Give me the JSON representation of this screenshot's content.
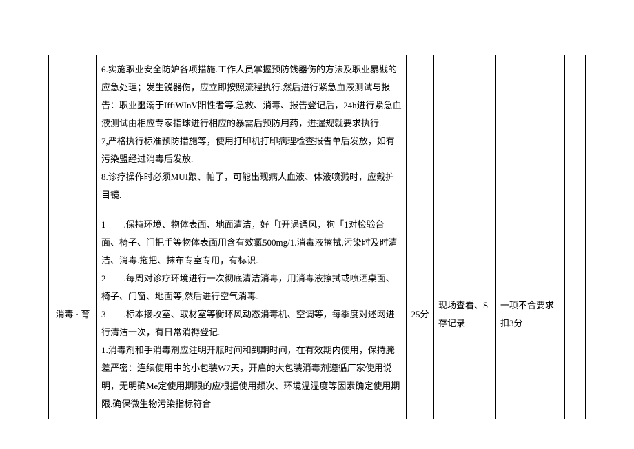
{
  "row1": {
    "content": "6.实施职业安全防妒各项措施.工作人员掌握预防饯器伤的方法及职业暴戡的应急处理；发生锐器伤，应立即按照流程执行.然后进行紧急血液测试与报告：职业噩溺于IffiWInV阳性者等.急救、消毒、报告登记后，24h进行紧急血液测试由相应专家指球进行相应的暴需后预防用药，进握规就要求执行.\n7,严格执行标准预防措施等，使用打印机打印病理检查报告单后发放，如有污染盟经过消毒后发放.\n8.诊疗操作时必须MUI踉、帕子，可能出现病人血液、体液喷溅时，应戴护目镜."
  },
  "row2": {
    "category": "消毒 · 育",
    "items": [
      "1　　.保持环境、物体表面、地面清洁，好「I开涡通风，狗「1对检验台面、椅子、门把手等物体表面用含有效氯500mg/1.消毒液擦拭,污染时及时清洁、消毒.拖把、抹布专室专用，有标识.",
      "2　　.每周对诊疗环境进行一次彻底清洁消毒，用消毒液擦拭或喷洒桌面、椅子、门窗、地面等,然后进行空气消毒.",
      "3　　.标本接收室、取材室等衡环风动态消毒机、空调等，每季度对述网进行清洁一次，有日常消褥登记.",
      "1.消毒剂和手消毒剂应注明开瓶时间和到期时间，在有效期内使用，保持腌差严密：连续使用中的小包装W7天，开启的大包装消毒剂遵循厂家使用说明，无明确Me定使用期限的应根据使用频次、环境温湿度等因素确定使用期限.确保微生物污染指标符合"
    ],
    "score": "25分",
    "method": "现场查看、S存记录",
    "deduction": "一项不合要求扣3分"
  }
}
